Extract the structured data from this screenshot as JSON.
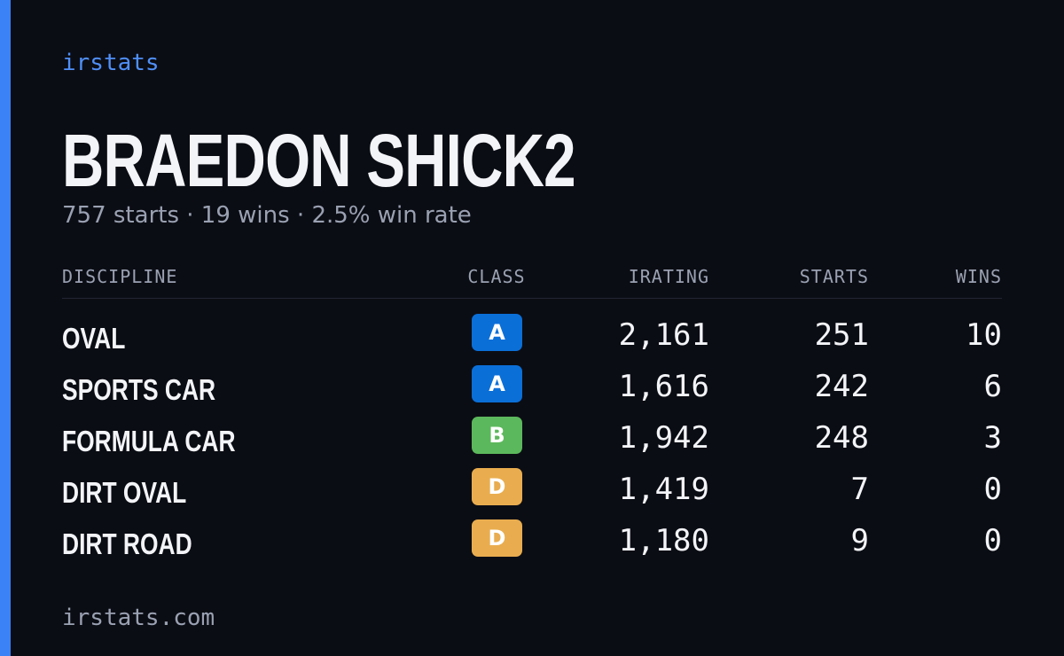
{
  "brand": "irstats",
  "title": "BRAEDON SHICK2",
  "subtitle": "757 starts · 19 wins · 2.5% win rate",
  "table": {
    "headers": [
      "DISCIPLINE",
      "CLASS",
      "IRATING",
      "STARTS",
      "WINS"
    ],
    "rows": [
      {
        "discipline": "OVAL",
        "class": "A",
        "class_color": "#0b6fd8",
        "irating": "2,161",
        "starts": "251",
        "wins": "10"
      },
      {
        "discipline": "SPORTS CAR",
        "class": "A",
        "class_color": "#0b6fd8",
        "irating": "1,616",
        "starts": "242",
        "wins": "6"
      },
      {
        "discipline": "FORMULA CAR",
        "class": "B",
        "class_color": "#5cb85c",
        "irating": "1,942",
        "starts": "248",
        "wins": "3"
      },
      {
        "discipline": "DIRT OVAL",
        "class": "D",
        "class_color": "#e9ad4f",
        "irating": "1,419",
        "starts": "7",
        "wins": "0"
      },
      {
        "discipline": "DIRT ROAD",
        "class": "D",
        "class_color": "#e9ad4f",
        "irating": "1,180",
        "starts": "9",
        "wins": "0"
      }
    ]
  },
  "footer": "irstats.com"
}
